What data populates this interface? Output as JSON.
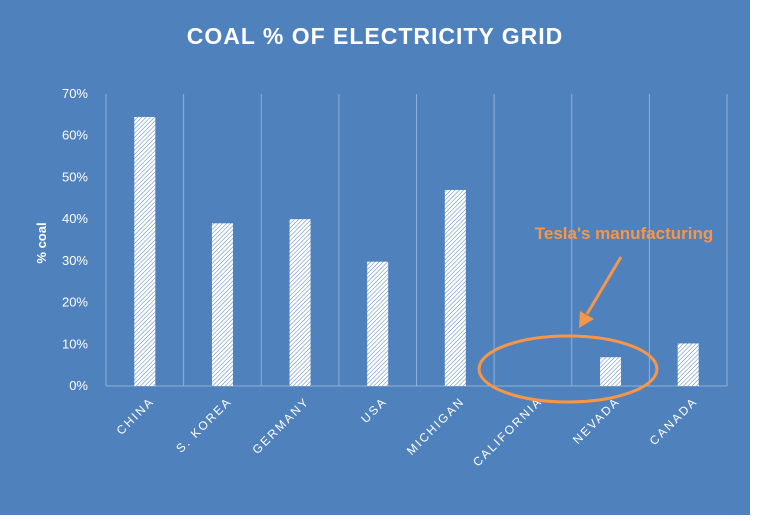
{
  "chart_data": {
    "type": "bar",
    "title": "COAL % OF ELECTRICITY  GRID",
    "xlabel": "",
    "ylabel": "% coal",
    "categories": [
      "CHINA",
      "S. KOREA",
      "GERMANY",
      "USA",
      "MICHIGAN",
      "CALIFORNIA",
      "NEVADA",
      "CANADA"
    ],
    "values": [
      64.5,
      39,
      40,
      29.8,
      47,
      0,
      6.9,
      10.2
    ],
    "ylim": [
      0,
      70
    ],
    "yticks": [
      "0%",
      "10%",
      "20%",
      "30%",
      "40%",
      "50%",
      "60%",
      "70%"
    ],
    "grid": "vertical",
    "annotation": "Tesla's manufacturing",
    "colors": {
      "background": "#4f81bd",
      "bar": "#ffffff",
      "annotation": "#f79646"
    }
  }
}
